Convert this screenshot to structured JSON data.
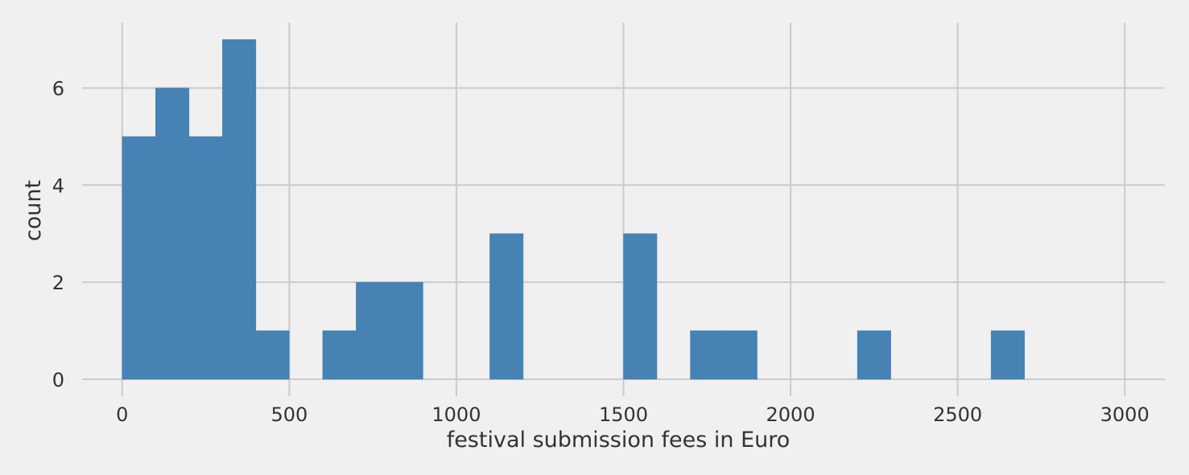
{
  "chart_data": {
    "type": "bar",
    "title": "",
    "xlabel": "festival submission fees in Euro",
    "ylabel": "count",
    "bin_width": 100,
    "bins": [
      {
        "x0": 0,
        "x1": 100,
        "count": 5
      },
      {
        "x0": 100,
        "x1": 200,
        "count": 6
      },
      {
        "x0": 200,
        "x1": 300,
        "count": 5
      },
      {
        "x0": 300,
        "x1": 400,
        "count": 7
      },
      {
        "x0": 400,
        "x1": 500,
        "count": 1
      },
      {
        "x0": 500,
        "x1": 600,
        "count": 0
      },
      {
        "x0": 600,
        "x1": 700,
        "count": 1
      },
      {
        "x0": 700,
        "x1": 800,
        "count": 2
      },
      {
        "x0": 800,
        "x1": 900,
        "count": 2
      },
      {
        "x0": 900,
        "x1": 1000,
        "count": 0
      },
      {
        "x0": 1000,
        "x1": 1100,
        "count": 0
      },
      {
        "x0": 1100,
        "x1": 1200,
        "count": 3
      },
      {
        "x0": 1200,
        "x1": 1300,
        "count": 0
      },
      {
        "x0": 1300,
        "x1": 1400,
        "count": 0
      },
      {
        "x0": 1400,
        "x1": 1500,
        "count": 0
      },
      {
        "x0": 1500,
        "x1": 1600,
        "count": 3
      },
      {
        "x0": 1600,
        "x1": 1700,
        "count": 0
      },
      {
        "x0": 1700,
        "x1": 1800,
        "count": 1
      },
      {
        "x0": 1800,
        "x1": 1900,
        "count": 1
      },
      {
        "x0": 1900,
        "x1": 2000,
        "count": 0
      },
      {
        "x0": 2000,
        "x1": 2100,
        "count": 0
      },
      {
        "x0": 2100,
        "x1": 2200,
        "count": 0
      },
      {
        "x0": 2200,
        "x1": 2300,
        "count": 1
      },
      {
        "x0": 2300,
        "x1": 2400,
        "count": 0
      },
      {
        "x0": 2400,
        "x1": 2500,
        "count": 0
      },
      {
        "x0": 2500,
        "x1": 2600,
        "count": 0
      },
      {
        "x0": 2600,
        "x1": 2700,
        "count": 1
      },
      {
        "x0": 2700,
        "x1": 2800,
        "count": 0
      },
      {
        "x0": 2800,
        "x1": 2900,
        "count": 0
      },
      {
        "x0": 2900,
        "x1": 3000,
        "count": 0
      }
    ],
    "x_ticks": [
      0,
      500,
      1000,
      1500,
      2000,
      2500,
      3000
    ],
    "y_ticks": [
      0,
      2,
      4,
      6
    ],
    "xlim": [
      -120,
      3120
    ],
    "ylim": [
      -0.35,
      7.35
    ],
    "grid": true,
    "bar_color": "#4682b4",
    "grid_color": "#cbcbcb",
    "background_color": "#f0f0f0"
  }
}
